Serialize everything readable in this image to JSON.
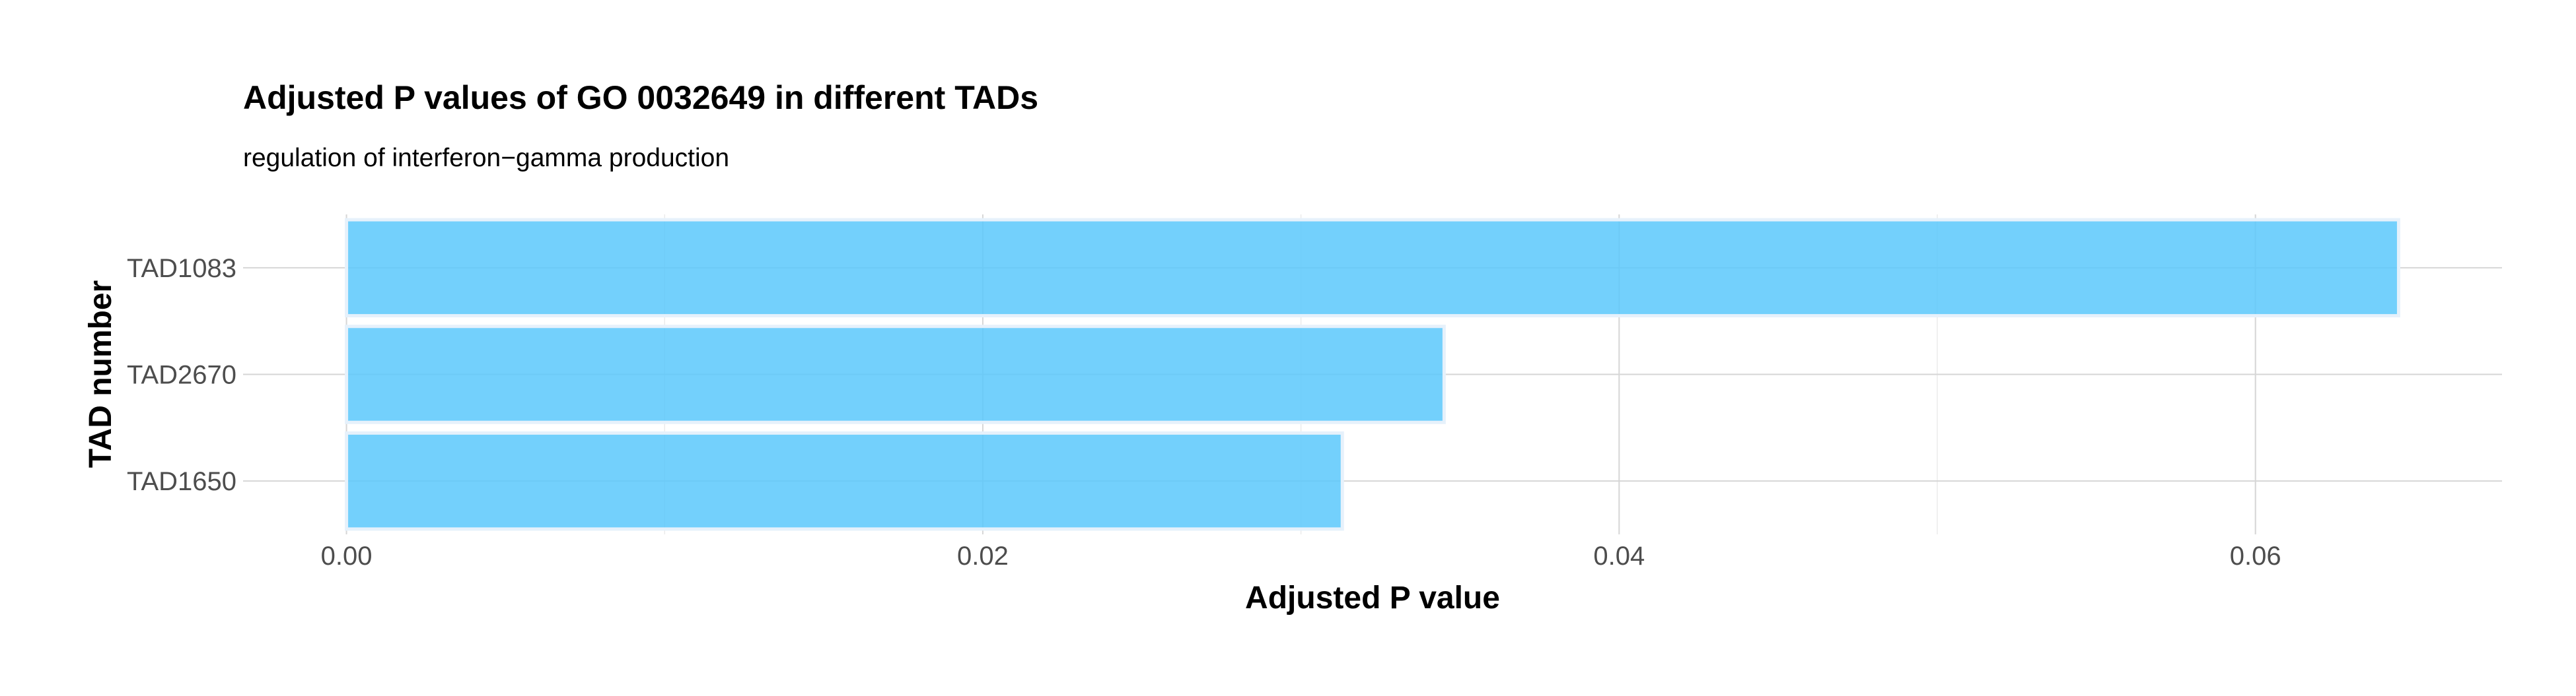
{
  "chart_data": {
    "type": "bar",
    "orientation": "horizontal",
    "title": "Adjusted P values of GO 0032649 in different TADs",
    "subtitle": "regulation of interferon−gamma production",
    "xlabel": "Adjusted P value",
    "ylabel": "TAD number",
    "categories": [
      "TAD1083",
      "TAD2670",
      "TAD1650"
    ],
    "values": [
      0.0645,
      0.0345,
      0.0313
    ],
    "xlim": [
      -0.00325,
      0.06775
    ],
    "x_ticks": [
      0.0,
      0.02,
      0.04,
      0.06
    ],
    "x_tick_labels": [
      "0.00",
      "0.02",
      "0.04",
      "0.06"
    ],
    "grid": true,
    "legend": "none",
    "bar_color": "#5bc8fc",
    "bar_opacity": 0.85
  }
}
